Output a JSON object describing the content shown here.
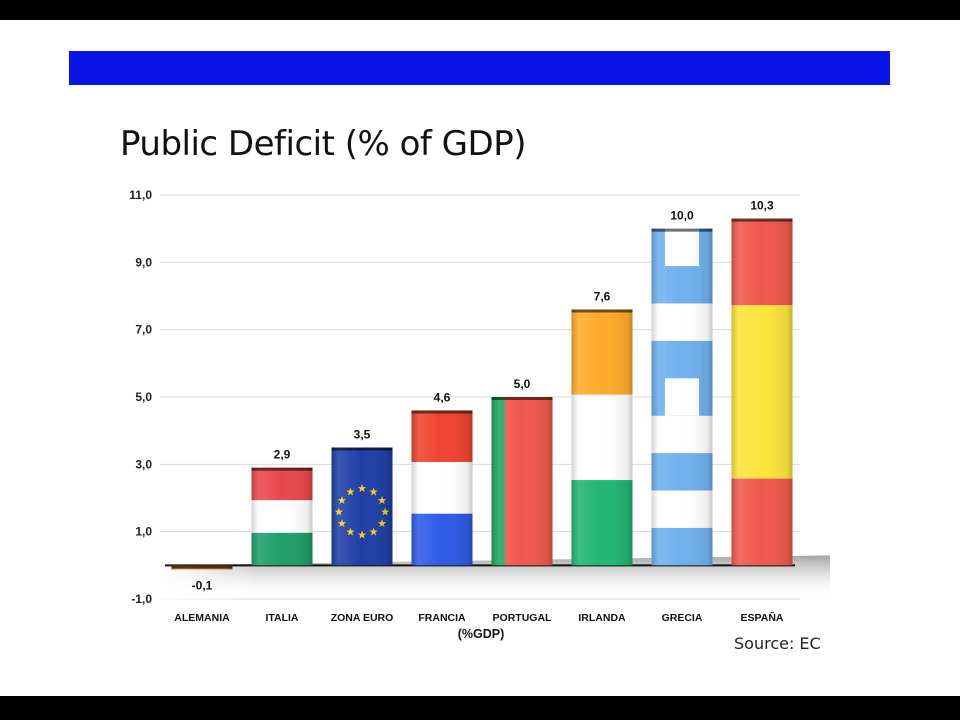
{
  "slide": {
    "title": "Public Deficit (% of GDP)",
    "source": "Source: EC",
    "band_color": "#0a14e6"
  },
  "chart_data": {
    "type": "bar",
    "title": "Public Deficit (% of GDP)",
    "xlabel": "(%GDP)",
    "ylabel": "",
    "ylim": [
      -1.0,
      11.0
    ],
    "yticks": [
      "11,0",
      "9,0",
      "7,0",
      "5,0",
      "3,0",
      "1,0",
      "-1,0"
    ],
    "ytick_values": [
      11,
      9,
      7,
      5,
      3,
      1,
      -1
    ],
    "grid": true,
    "categories": [
      "ALEMANIA",
      "ITALIA",
      "ZONA EURO",
      "FRANCIA",
      "PORTUGAL",
      "IRLANDA",
      "GRECIA",
      "ESPAÑA"
    ],
    "values": [
      -0.1,
      2.9,
      3.5,
      4.6,
      5.0,
      7.6,
      10.0,
      10.3
    ],
    "value_labels": [
      "-0,1",
      "2,9",
      "3,5",
      "4,6",
      "5,0",
      "7,6",
      "10,0",
      "10,3"
    ],
    "bar_styles": [
      "germany-flag",
      "italy-flag",
      "eu-flag",
      "france-flag",
      "portugal-flag",
      "ireland-flag",
      "greece-flag",
      "spain-flag"
    ]
  }
}
